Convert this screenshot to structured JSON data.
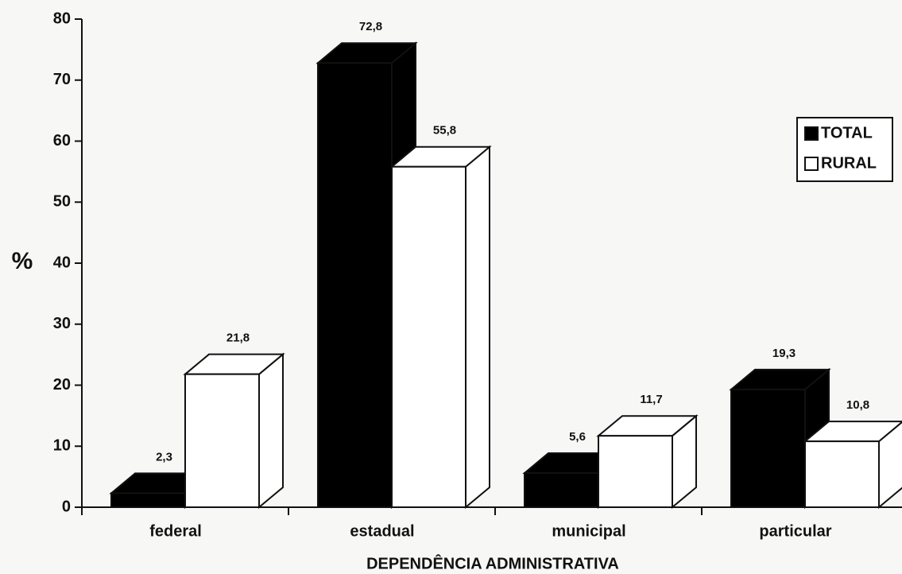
{
  "chart_data": {
    "type": "bar3d",
    "categories": [
      "federal",
      "estadual",
      "municipal",
      "particular"
    ],
    "series": [
      {
        "name": "TOTAL",
        "color": "#000000",
        "values": [
          2.3,
          72.8,
          5.6,
          19.3
        ],
        "value_labels": [
          "2,3",
          "72,8",
          "5,6",
          "19,3"
        ]
      },
      {
        "name": "RURAL",
        "color": "#ffffff",
        "values": [
          21.8,
          55.8,
          11.7,
          10.8
        ],
        "value_labels": [
          "21,8",
          "55,8",
          "11,7",
          "10,8"
        ]
      }
    ],
    "ylabel": "%",
    "xlabel": "DEPENDÊNCIA ADMINISTRATIVA",
    "ylim": [
      0,
      80
    ],
    "yticks": [
      0,
      10,
      20,
      30,
      40,
      50,
      60,
      70,
      80
    ],
    "grid": false,
    "legend": "right"
  }
}
